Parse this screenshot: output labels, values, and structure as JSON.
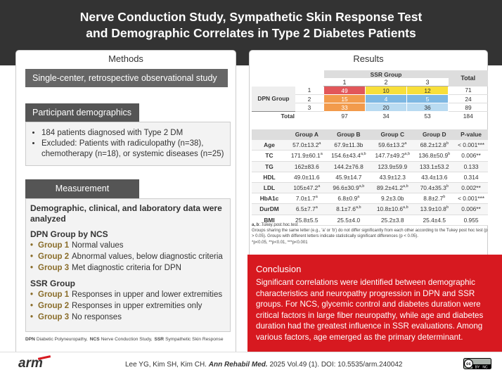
{
  "header": {
    "title": [
      "Nerve Conduction Study, Sympathetic Skin Response Test",
      "and Demographic Correlates in Type 2 Diabetes Patients"
    ]
  },
  "methods": {
    "tab": "Methods",
    "design": "Single-center, retrospective observational study",
    "demographics": {
      "title": "Participant demographics",
      "bullets": [
        "184 patients diagnosed with Type 2 DM",
        "Excluded: Patients with radiculopathy (n=38), chemotherapy (n=18), or systemic diseases (n=25)"
      ]
    },
    "measurement": {
      "title": "Measurement",
      "intro": "Demographic, clinical, and laboratory data were analyzed",
      "groups": [
        {
          "title": "DPN Group by NCS",
          "items": [
            {
              "label": "Group 1",
              "text": "Normal values"
            },
            {
              "label": "Group 2",
              "text": "Abnormal values, below diagnostic criteria"
            },
            {
              "label": "Group 3",
              "text": "Met diagnostic criteria for DPN"
            }
          ]
        },
        {
          "title": "SSR Group",
          "items": [
            {
              "label": "Group 1",
              "text": "Responses in upper and lower extremities"
            },
            {
              "label": "Group 2",
              "text": "Responses in upper extremities only"
            },
            {
              "label": "Group 3",
              "text": "No responses"
            }
          ]
        }
      ]
    },
    "abbreviations": [
      {
        "abbr": "DPN",
        "text": "Diabetic Polyneuropathy,"
      },
      {
        "abbr": "NCS",
        "text": "Nerve Conduction Study,"
      },
      {
        "abbr": "SSR",
        "text": "Sympathetic Skin Response"
      }
    ]
  },
  "results": {
    "tab": "Results",
    "ssr_table": {
      "col_header": "SSR Group",
      "total_header": "Total",
      "columns": [
        "1",
        "2",
        "3"
      ],
      "row_header": "DPN Group",
      "rows": [
        {
          "label": "1",
          "values": [
            49,
            10,
            12
          ],
          "total": 71,
          "colors": [
            "#e2575a",
            "#f8df3a",
            "#f8df3a"
          ]
        },
        {
          "label": "2",
          "values": [
            15,
            4,
            5
          ],
          "total": 24,
          "colors": [
            "#f29b4c",
            "#7eb8e2",
            "#7eb8e2"
          ]
        },
        {
          "label": "3",
          "values": [
            33,
            20,
            36
          ],
          "total": 89,
          "colors": [
            "#f29b4c",
            "#b9dbf1",
            "#b9dbf1"
          ]
        }
      ],
      "total_row": {
        "label": "Total",
        "values": [
          97,
          34,
          53
        ],
        "total": 184
      }
    },
    "lab_table": {
      "columns": [
        "Group A",
        "Group B",
        "Group C",
        "Group D",
        "P-value"
      ],
      "rows": [
        {
          "label": "Age",
          "cells": [
            {
              "v": "57.0±13.2",
              "sup": "a"
            },
            "67.9±11.3b",
            {
              "v": "59.6±13.2",
              "sup": "a"
            },
            {
              "v": "68.2±12.8",
              "sup": "b"
            },
            "< 0.001***"
          ]
        },
        {
          "label": "TC",
          "cells": [
            {
              "v": "171.9±60.1",
              "sup": "a"
            },
            {
              "v": "154.6±43.4",
              "sup": "a,b"
            },
            {
              "v": "147.7±49.2",
              "sup": "a,b"
            },
            {
              "v": "136.8±50.9",
              "sup": "b"
            },
            "0.006**"
          ]
        },
        {
          "label": "TG",
          "cells": [
            "162±83.6",
            "144.2±76.8",
            "123.9±59.9",
            "133.1±53.2",
            "0.133"
          ]
        },
        {
          "label": "HDL",
          "cells": [
            "49.0±11.6",
            "45.9±14.7",
            "43.9±12.3",
            "43.4±13.6",
            "0.314"
          ]
        },
        {
          "label": "LDL",
          "cells": [
            {
              "v": "105±47.2",
              "sup": "a"
            },
            {
              "v": "96.6±30.9",
              "sup": "a,b"
            },
            {
              "v": "89.2±41.2",
              "sup": "a,b"
            },
            {
              "v": "70.4±35.3",
              "sup": "b"
            },
            "0.002**"
          ]
        },
        {
          "label": "HbA1c",
          "cells": [
            {
              "v": "7.0±1.7",
              "sup": "a"
            },
            {
              "v": "6.8±0.9",
              "sup": "a"
            },
            "9.2±3.0b",
            {
              "v": "8.8±2.7",
              "sup": "b"
            },
            "< 0.001***"
          ]
        },
        {
          "label": "DurDM",
          "cells": [
            {
              "v": "6.5±7.7",
              "sup": "a"
            },
            {
              "v": "8.1±7.6",
              "sup": "a,b"
            },
            {
              "v": "10.8±10.6",
              "sup": "a,b"
            },
            {
              "v": "13.9±10.8",
              "sup": "b"
            },
            "0.006**"
          ]
        },
        {
          "label": "BMI",
          "cells": [
            "25.8±5.5",
            "25.5±4.0",
            "25.2±3.8",
            "25.4±4.5",
            "0.955"
          ]
        }
      ]
    },
    "notes": {
      "key": "a, b",
      "key_text": ": Tukey post hoc test",
      "lines": [
        "Groups sharing the same letter (e.g., 'a' or 'b') do not differ significantly from each other according to the Tukey post hoc test (p > 0.05). Groups with different letters indicate statistically significant differences (p < 0.05).",
        "*p<0.05, **p<0.01, ***p<0.001"
      ]
    }
  },
  "conclusion": {
    "title": "Conclusion",
    "text": "Significant correlations were identified between demographic characteristics and neuropathy progression in DPN and SSR groups. For NCS, glycemic control and diabetes duration were critical factors in large fiber neuropathy, while age and diabetes duration had the greatest influence in SSR evaluations. Among various factors, age emerged as the primary determinant."
  },
  "footer": {
    "logo": "arm",
    "authors": "Lee YG, Kim SH, Kim CH.",
    "journal": "Ann Rehabil Med.",
    "citation": "2025 Vol.49 (1). DOI: 10.5535/arm.240042",
    "license": [
      "cc",
      "BY",
      "NC"
    ]
  }
}
